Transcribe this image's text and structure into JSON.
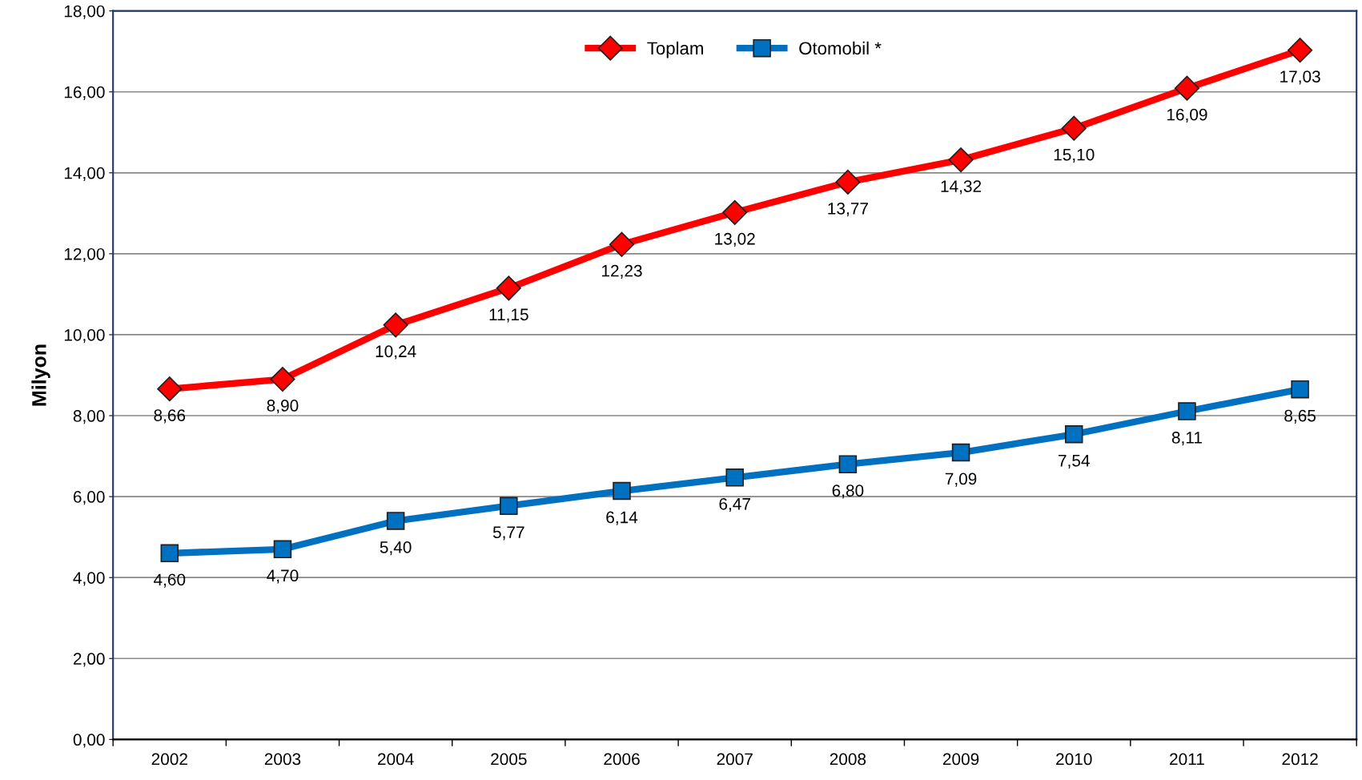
{
  "chart_data": {
    "type": "line",
    "ylabel": "Milyon",
    "categories": [
      "2002",
      "2003",
      "2004",
      "2005",
      "2006",
      "2007",
      "2008",
      "2009",
      "2010",
      "2011",
      "2012"
    ],
    "series": [
      {
        "name": "Toplam",
        "color": "#ff0000",
        "marker": "diamond",
        "values": [
          8.66,
          8.9,
          10.24,
          11.15,
          12.23,
          13.02,
          13.77,
          14.32,
          15.1,
          16.09,
          17.03
        ],
        "value_labels": [
          "8,66",
          "8,90",
          "10,24",
          "11,15",
          "12,23",
          "13,02",
          "13,77",
          "14,32",
          "15,10",
          "16,09",
          "17,03"
        ]
      },
      {
        "name": "Otomobil *",
        "color": "#0070c0",
        "marker": "square",
        "values": [
          4.6,
          4.7,
          5.4,
          5.77,
          6.14,
          6.47,
          6.8,
          7.09,
          7.54,
          8.11,
          8.65
        ],
        "value_labels": [
          "4,60",
          "4,70",
          "5,40",
          "5,77",
          "6,14",
          "6,47",
          "6,80",
          "7,09",
          "7,54",
          "8,11",
          "8,65"
        ]
      }
    ],
    "ylim": [
      0,
      18
    ],
    "yticks": [
      {
        "value": 0,
        "label": "0,00"
      },
      {
        "value": 2,
        "label": "2,00"
      },
      {
        "value": 4,
        "label": "4,00"
      },
      {
        "value": 6,
        "label": "6,00"
      },
      {
        "value": 8,
        "label": "8,00"
      },
      {
        "value": 10,
        "label": "10,00"
      },
      {
        "value": 12,
        "label": "12,00"
      },
      {
        "value": 14,
        "label": "14,00"
      },
      {
        "value": 16,
        "label": "16,00"
      },
      {
        "value": 18,
        "label": "18,00"
      }
    ],
    "grid": "y",
    "legend": "top",
    "line_style": "solid"
  }
}
